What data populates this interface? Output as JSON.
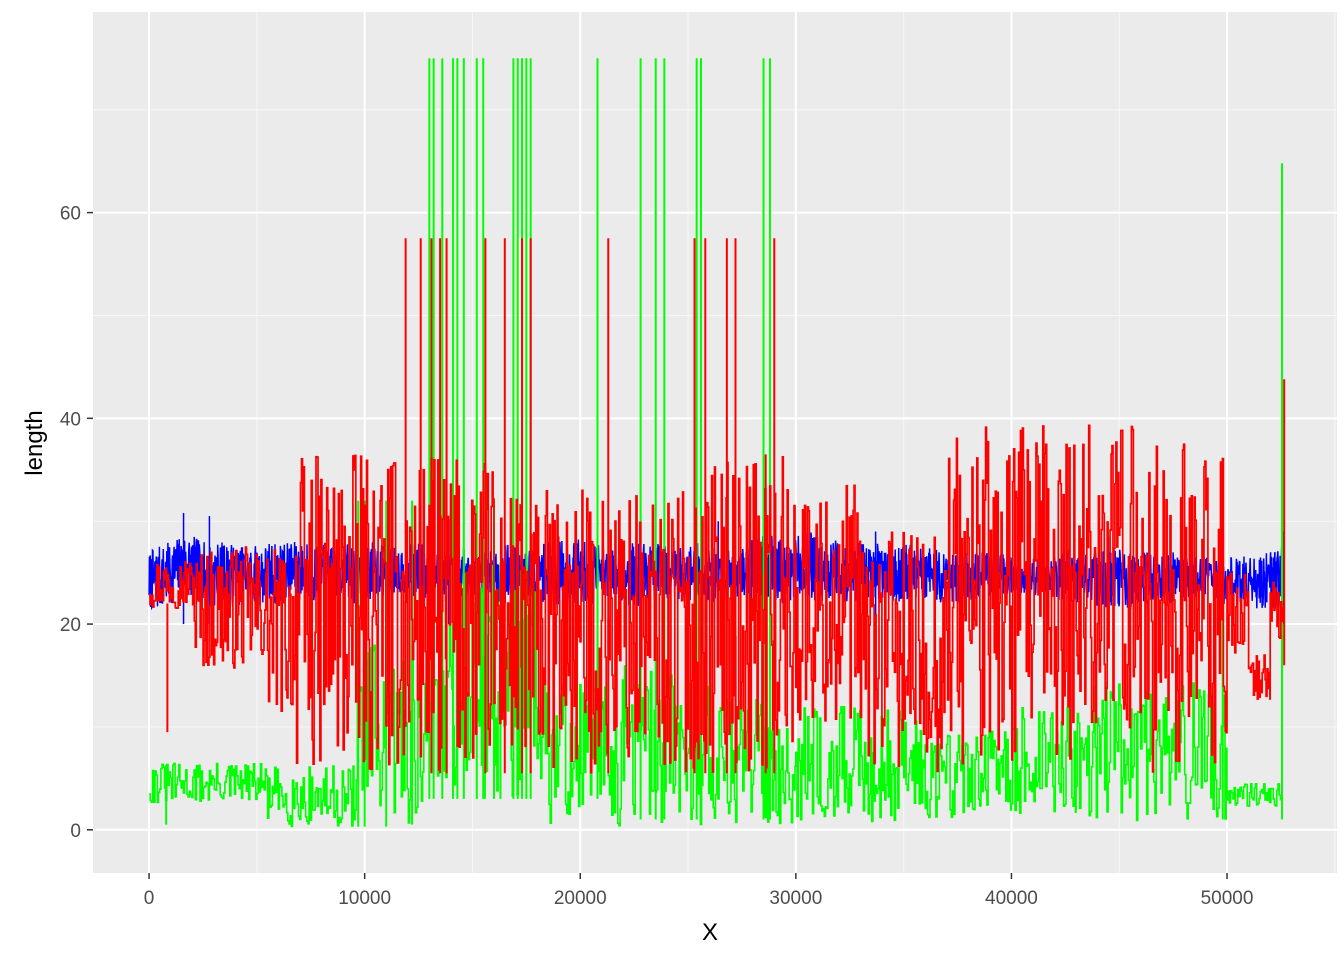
{
  "chart_data": {
    "type": "line",
    "title": "",
    "xlabel": "X",
    "ylabel": "length",
    "xlim": [
      -2600,
      55100
    ],
    "ylim": [
      -4.2,
      79.5
    ],
    "x_ticks": [
      0,
      10000,
      20000,
      30000,
      40000,
      50000
    ],
    "x_tick_labels": [
      "0",
      "10000",
      "20000",
      "30000",
      "40000",
      "50000"
    ],
    "y_ticks": [
      0,
      20,
      40,
      60
    ],
    "y_tick_labels": [
      "0",
      "20",
      "40",
      "60"
    ],
    "grid": true,
    "legend": "none",
    "panel_color": "#ebebeb",
    "series": [
      {
        "color": "#0000ff",
        "x": [
          0,
          300,
          1000,
          1700,
          2500,
          3500,
          4500,
          5500,
          6500,
          7500,
          8500,
          9500,
          10500,
          11500,
          12500,
          13500,
          14500,
          15500,
          16500,
          17500,
          18500,
          19500,
          20500,
          21500,
          22500,
          23500,
          24500,
          25500,
          26500,
          27500,
          28500,
          29500,
          30500,
          31500,
          32500,
          33500,
          34500,
          35500,
          36500,
          37500,
          38500,
          39500,
          40500,
          41500,
          42500,
          43500,
          44500,
          45500,
          46500,
          47500,
          48500,
          49500,
          50500,
          51500,
          52300,
          52600
        ],
        "lower": [
          21.5,
          21,
          22,
          22.5,
          22,
          21.5,
          22,
          21.5,
          22.5,
          22,
          22.5,
          22,
          22.5,
          23,
          22.5,
          22,
          22.5,
          23,
          22,
          22.5,
          22,
          21.5,
          22,
          22,
          21.5,
          22,
          22.5,
          21.5,
          22,
          22.5,
          22,
          22,
          22.5,
          22,
          22,
          22.5,
          22,
          22.5,
          22,
          22,
          22.5,
          23,
          22.5,
          23,
          22,
          22,
          21.5,
          21.5,
          22,
          22,
          22.5,
          22,
          21.5,
          21.5,
          21.5,
          21.5
        ],
        "upper": [
          27,
          27.5,
          28,
          29,
          28,
          28,
          27.5,
          28,
          28,
          28,
          27.5,
          28,
          28,
          27.5,
          28,
          27,
          27.5,
          27,
          28,
          27,
          28,
          28.5,
          28,
          27.5,
          28,
          28,
          27.5,
          28,
          28,
          27.5,
          29,
          28,
          29,
          28.5,
          28,
          28,
          27.5,
          28,
          27.5,
          27,
          27,
          27,
          26.5,
          26.5,
          27,
          27,
          27.5,
          27,
          27,
          27,
          26.5,
          26.5,
          26.5,
          27,
          27,
          28.5
        ],
        "spikes": [
          [
            1600,
            20,
            30.8
          ],
          [
            2800,
            20,
            30.5
          ],
          [
            13900,
            20,
            30.2
          ],
          [
            26400,
            21,
            30
          ],
          [
            33700,
            20.5,
            29
          ],
          [
            44500,
            20,
            28.5
          ],
          [
            52600,
            20,
            29
          ]
        ]
      },
      {
        "color": "#00ff00",
        "segments": [
          {
            "x_start": 0,
            "x_end": 5500,
            "lower": 2.5,
            "upper": 6.5
          },
          {
            "x_start": 5500,
            "x_end": 9500,
            "lower": 0.3,
            "upper": 6.2
          },
          {
            "x_start": 9500,
            "x_end": 13000,
            "lower": 0.3,
            "upper": 18
          },
          {
            "x_start": 13000,
            "x_end": 18000,
            "lower": 3,
            "upper": 26
          },
          {
            "x_start": 18000,
            "x_end": 22000,
            "lower": 0.3,
            "upper": 15
          },
          {
            "x_start": 22000,
            "x_end": 26000,
            "lower": 0.3,
            "upper": 16
          },
          {
            "x_start": 26000,
            "x_end": 30000,
            "lower": 0.5,
            "upper": 13
          },
          {
            "x_start": 30000,
            "x_end": 36000,
            "lower": 0.8,
            "upper": 12
          },
          {
            "x_start": 36000,
            "x_end": 40000,
            "lower": 1,
            "upper": 10
          },
          {
            "x_start": 40000,
            "x_end": 43000,
            "lower": 1.5,
            "upper": 12
          },
          {
            "x_start": 43000,
            "x_end": 46000,
            "lower": 0.8,
            "upper": 14.5
          },
          {
            "x_start": 46000,
            "x_end": 50000,
            "lower": 0.8,
            "upper": 14.5
          },
          {
            "x_start": 50000,
            "x_end": 52500,
            "lower": 2.3,
            "upper": 4.5
          }
        ],
        "spikes": [
          [
            794,
            0.5,
            6.3
          ],
          [
            9700,
            0.3,
            32
          ],
          [
            10000,
            0.3,
            32
          ],
          [
            11000,
            0.3,
            32
          ],
          [
            12200,
            0.5,
            32
          ],
          [
            13000,
            3,
            75
          ],
          [
            13200,
            3,
            75
          ],
          [
            13600,
            3,
            75
          ],
          [
            14100,
            3,
            75
          ],
          [
            14300,
            3,
            75
          ],
          [
            14600,
            3,
            75
          ],
          [
            15200,
            3,
            75
          ],
          [
            15500,
            3,
            75
          ],
          [
            16000,
            3,
            32
          ],
          [
            16300,
            3,
            26
          ],
          [
            16900,
            3,
            75
          ],
          [
            17100,
            3,
            75
          ],
          [
            17300,
            3,
            75
          ],
          [
            17500,
            3,
            75
          ],
          [
            17700,
            3,
            75
          ],
          [
            20800,
            3,
            75
          ],
          [
            22800,
            1,
            75
          ],
          [
            23500,
            1,
            75
          ],
          [
            23900,
            1,
            75
          ],
          [
            25400,
            1,
            75
          ],
          [
            25600,
            1,
            75
          ],
          [
            28500,
            1,
            75
          ],
          [
            28800,
            1,
            75
          ],
          [
            49800,
            1,
            25
          ],
          [
            52550,
            1,
            64.8
          ]
        ]
      },
      {
        "color": "#ff0000",
        "segments": [
          {
            "x_start": 0,
            "x_end": 2100,
            "lower": 21.5,
            "upper": 26.5
          },
          {
            "x_start": 2100,
            "x_end": 3800,
            "lower": 15.5,
            "upper": 27.5
          },
          {
            "x_start": 3800,
            "x_end": 5500,
            "lower": 15.5,
            "upper": 27.5
          },
          {
            "x_start": 5500,
            "x_end": 6800,
            "lower": 11,
            "upper": 27.5
          },
          {
            "x_start": 6800,
            "x_end": 9500,
            "lower": 5.5,
            "upper": 36.5
          },
          {
            "x_start": 9500,
            "x_end": 12000,
            "lower": 5.5,
            "upper": 36.5
          },
          {
            "x_start": 12000,
            "x_end": 16000,
            "lower": 5.5,
            "upper": 36.5
          },
          {
            "x_start": 16000,
            "x_end": 19000,
            "lower": 5.5,
            "upper": 33
          },
          {
            "x_start": 19000,
            "x_end": 22000,
            "lower": 5.5,
            "upper": 33
          },
          {
            "x_start": 22000,
            "x_end": 26000,
            "lower": 5.5,
            "upper": 33
          },
          {
            "x_start": 26000,
            "x_end": 30000,
            "lower": 5.5,
            "upper": 36.5
          },
          {
            "x_start": 30000,
            "x_end": 33000,
            "lower": 9.5,
            "upper": 33.5
          },
          {
            "x_start": 33000,
            "x_end": 37000,
            "lower": 5.5,
            "upper": 29
          },
          {
            "x_start": 37000,
            "x_end": 43000,
            "lower": 5.5,
            "upper": 39.5
          },
          {
            "x_start": 43000,
            "x_end": 46500,
            "lower": 9.5,
            "upper": 39.5
          },
          {
            "x_start": 46500,
            "x_end": 50000,
            "lower": 5.5,
            "upper": 37.5
          },
          {
            "x_start": 50000,
            "x_end": 51000,
            "lower": 17,
            "upper": 25
          },
          {
            "x_start": 51000,
            "x_end": 52000,
            "lower": 12.7,
            "upper": 17
          },
          {
            "x_start": 52000,
            "x_end": 52600,
            "lower": 16,
            "upper": 26
          }
        ],
        "spikes": [
          [
            850,
            9.5,
            22
          ],
          [
            11900,
            10,
            57.5
          ],
          [
            12600,
            10,
            57.5
          ],
          [
            13100,
            5.5,
            57.5
          ],
          [
            13500,
            5.5,
            57.5
          ],
          [
            13800,
            5.5,
            57.5
          ],
          [
            15600,
            5.5,
            57.5
          ],
          [
            16500,
            5.5,
            57.5
          ],
          [
            17300,
            5.5,
            57.5
          ],
          [
            17700,
            5.5,
            57.5
          ],
          [
            21300,
            5.5,
            57.5
          ],
          [
            25300,
            5.5,
            57.5
          ],
          [
            25800,
            5.5,
            57.5
          ],
          [
            26800,
            5.5,
            57.5
          ],
          [
            27200,
            5.5,
            57.5
          ],
          [
            28600,
            5.5,
            36.5
          ],
          [
            29000,
            5.5,
            57.5
          ],
          [
            52650,
            16,
            43.8
          ]
        ]
      }
    ]
  }
}
